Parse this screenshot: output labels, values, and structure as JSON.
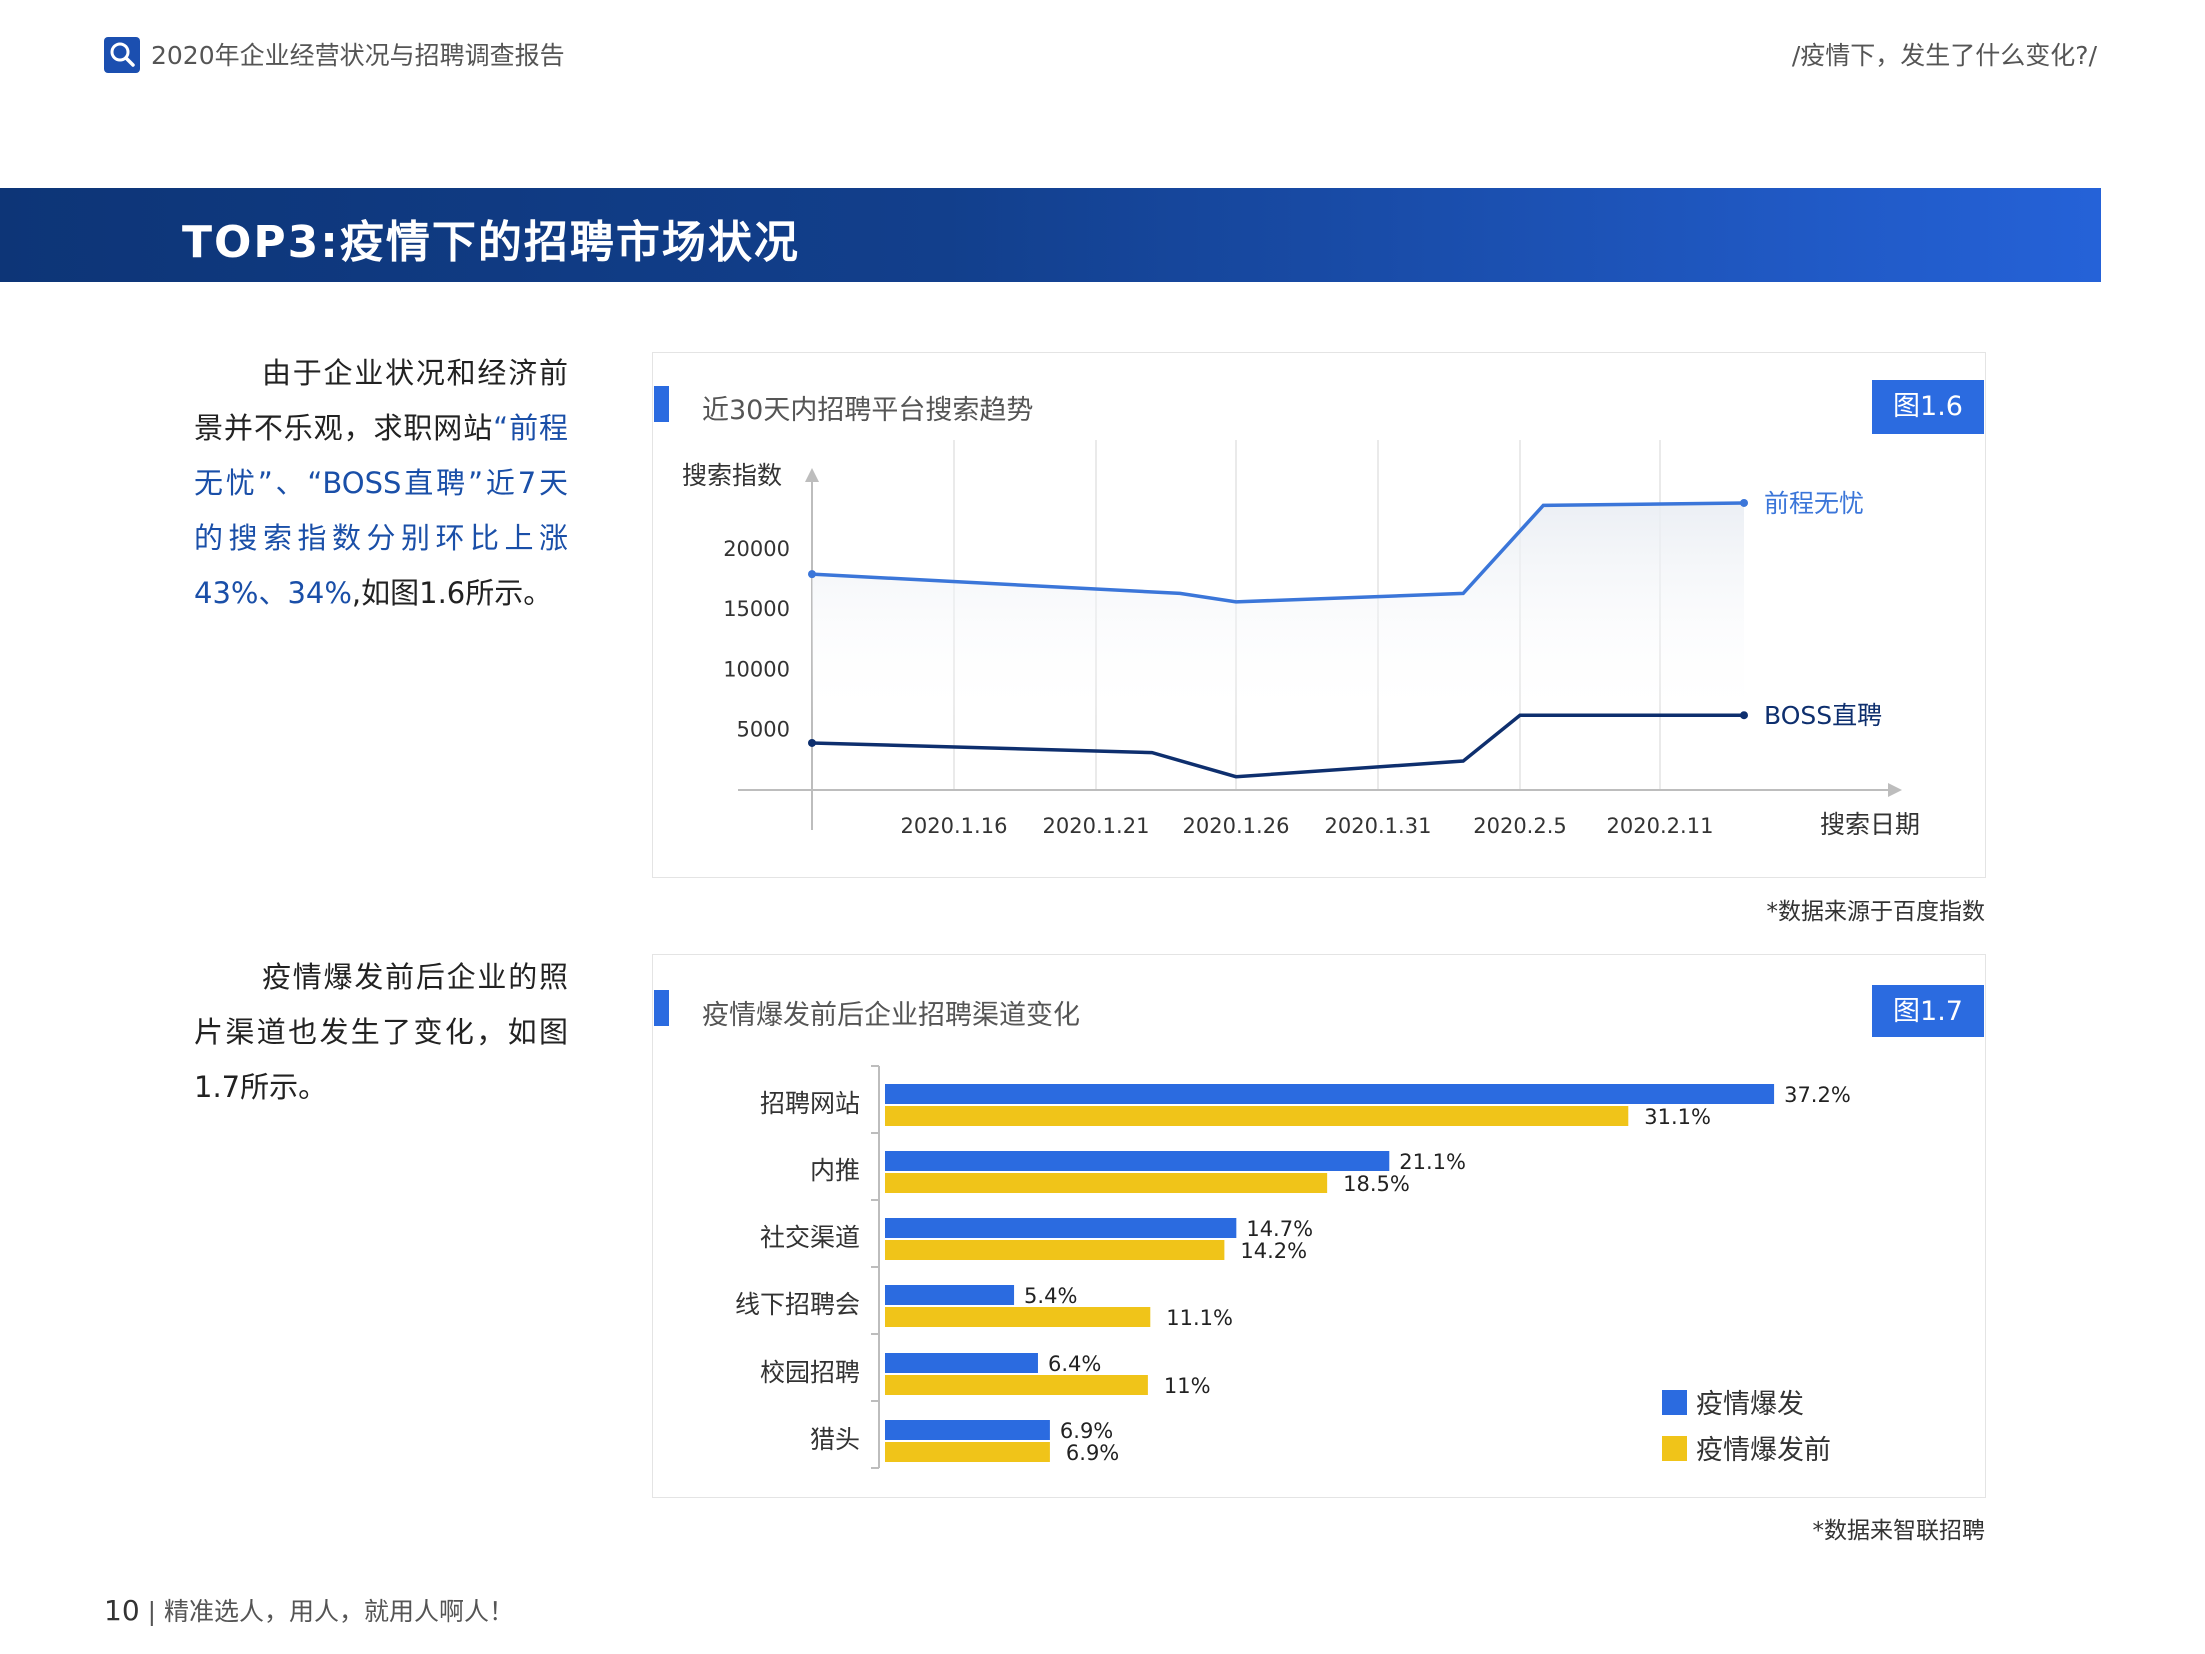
{
  "header": {
    "title": "2020年企业经营状况与招聘调查报告",
    "right": "/疫情下，发生了什么变化?/"
  },
  "banner": {
    "title": "TOP3:疫情下的招聘市场状况"
  },
  "text1": {
    "p1": "由于企业状况和经济前景并不乐观，求职网站",
    "h1": "“前程无忧”、“BOSS直聘”近7天的搜索指数分别环比上涨43%、34%",
    "p2": ",如图1.6所示。"
  },
  "text2": {
    "content": "疫情爆发前后企业的照片渠道也发生了变化，如图1.7所示。"
  },
  "figure1": {
    "title": "近30天内招聘平台搜索趋势",
    "badge": "图1.6",
    "source": "*数据来源于百度指数",
    "chart_data": {
      "type": "line",
      "ylabel": "搜索指数",
      "xlabel": "搜索日期",
      "y_ticks": [
        5000,
        10000,
        15000,
        20000
      ],
      "x_ticks": [
        "2020.1.16",
        "2020.1.21",
        "2020.1.26",
        "2020.1.31",
        "2020.2.5",
        "2020.2.11"
      ],
      "series": [
        {
          "name": "前程无忧",
          "color": "#3b76d9",
          "points": [
            [
              "2020.1.11",
              17900
            ],
            [
              "2020.1.24",
              16300
            ],
            [
              "2020.1.26",
              15600
            ],
            [
              "2020.2.3",
              16300
            ],
            [
              "2020.2.6",
              23600
            ],
            [
              "2020.2.14",
              23800
            ]
          ]
        },
        {
          "name": "BOSS直聘",
          "color": "#0e2f6e",
          "points": [
            [
              "2020.1.11",
              3900
            ],
            [
              "2020.1.23",
              3100
            ],
            [
              "2020.1.26",
              1100
            ],
            [
              "2020.2.3",
              2400
            ],
            [
              "2020.2.5",
              6200
            ],
            [
              "2020.2.14",
              6200
            ]
          ]
        }
      ]
    }
  },
  "figure2": {
    "title": "疫情爆发前后企业招聘渠道变化",
    "badge": "图1.7",
    "source": "*数据来智联招聘",
    "chart_data": {
      "type": "bar",
      "orientation": "horizontal",
      "categories": [
        "招聘网站",
        "内推",
        "社交渠道",
        "线下招聘会",
        "校园招聘",
        "猎头"
      ],
      "series": [
        {
          "name": "疫情爆发",
          "color": "#2b6be0",
          "values": [
            37.2,
            21.1,
            14.7,
            5.4,
            6.4,
            6.9
          ],
          "labels": [
            "37.2%",
            "21.1%",
            "14.7%",
            "5.4%",
            "6.4%",
            "6.9%"
          ]
        },
        {
          "name": "疫情爆发前",
          "color": "#f0c419",
          "values": [
            31.1,
            18.5,
            14.2,
            11.1,
            11,
            6.9
          ],
          "labels": [
            "31.1%",
            "18.5%",
            "14.2%",
            "11.1%",
            "11%",
            "6.9%"
          ]
        }
      ],
      "legend": "bottom-right"
    }
  },
  "footer": {
    "page": "10",
    "slogan": "精准选人，用人，就用人啊人！"
  }
}
